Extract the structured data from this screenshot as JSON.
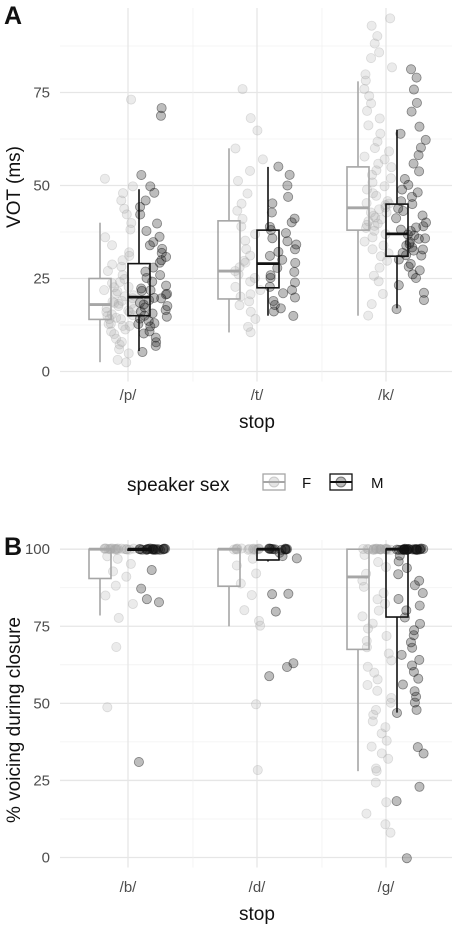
{
  "legend": {
    "title": "speaker sex",
    "entries": [
      {
        "label": "F",
        "color": "#a6a6a6"
      },
      {
        "label": "M",
        "color": "#111111"
      }
    ]
  },
  "chart_data": [
    {
      "type": "boxplot",
      "panel": "A",
      "xlabel": "stop",
      "ylabel": "VOT (ms)",
      "categories": [
        "/p/",
        "/t/",
        "/k/"
      ],
      "ylim": [
        0,
        97
      ],
      "yticks": [
        0,
        25,
        50,
        75
      ],
      "grid": true,
      "series": [
        {
          "name": "F",
          "color": "#a6a6a6",
          "boxes": [
            {
              "category": "/p/",
              "whisker_low": 2.5,
              "q1": 14,
              "median": 18,
              "q3": 25,
              "whisker_high": 40
            },
            {
              "category": "/t/",
              "whisker_low": 10.5,
              "q1": 19.5,
              "median": 27,
              "q3": 40.5,
              "whisker_high": 60
            },
            {
              "category": "/k/",
              "whisker_low": 15,
              "q1": 38,
              "median": 44,
              "q3": 55,
              "whisker_high": 78
            }
          ]
        },
        {
          "name": "M",
          "color": "#111111",
          "boxes": [
            {
              "category": "/p/",
              "whisker_low": 5.5,
              "q1": 15,
              "median": 20,
              "q3": 29,
              "whisker_high": 49
            },
            {
              "category": "/t/",
              "whisker_low": 15,
              "q1": 22.5,
              "median": 29,
              "q3": 38,
              "whisker_high": 55
            },
            {
              "category": "/k/",
              "whisker_low": 17,
              "q1": 31,
              "median": 37,
              "q3": 45,
              "whisker_high": 65
            }
          ]
        }
      ],
      "points": [
        {
          "category": "/p/",
          "series": "F",
          "values": [
            2.5,
            3,
            5,
            6,
            7,
            8,
            9,
            10,
            11,
            11.5,
            12,
            12.5,
            13,
            13,
            14,
            14,
            14.5,
            15,
            15,
            15.5,
            16,
            16,
            16.5,
            17,
            17,
            17.5,
            18,
            18,
            18.5,
            19,
            19,
            19.5,
            20,
            20.5,
            21,
            21.5,
            22,
            22.5,
            23,
            23.5,
            24,
            25,
            26,
            27,
            28,
            29,
            30,
            31,
            32,
            34,
            36,
            38,
            40,
            42,
            44,
            46,
            48,
            50,
            52,
            73
          ]
        },
        {
          "category": "/p/",
          "series": "M",
          "values": [
            5.5,
            7,
            8,
            9,
            10,
            11,
            12,
            12.5,
            13,
            13.5,
            14,
            14.5,
            15,
            15.5,
            16,
            16.5,
            17,
            17.5,
            18,
            18.5,
            19,
            19.5,
            20,
            20.5,
            21,
            21.5,
            22,
            22.5,
            23,
            24,
            25,
            26,
            27,
            28,
            29,
            30,
            31,
            32,
            33,
            34,
            35,
            36,
            38,
            40,
            42,
            44,
            46,
            48,
            50,
            53,
            69,
            71
          ]
        },
        {
          "category": "/t/",
          "series": "F",
          "values": [
            10.5,
            12,
            14,
            16,
            18,
            19,
            20,
            21,
            22,
            23,
            24,
            25,
            26,
            27,
            28,
            29,
            30,
            31,
            33,
            35,
            37,
            39,
            41,
            43,
            45,
            48,
            51,
            54,
            57,
            60,
            65,
            68,
            76
          ]
        },
        {
          "category": "/t/",
          "series": "M",
          "values": [
            15,
            16,
            17,
            18,
            19,
            20,
            21,
            22,
            23,
            24,
            25,
            26,
            27,
            28,
            29,
            30,
            31,
            32,
            33,
            34,
            35,
            36,
            37,
            38,
            39,
            40,
            41,
            43,
            45,
            47,
            50,
            53,
            55
          ]
        },
        {
          "category": "/k/",
          "series": "F",
          "values": [
            15,
            18,
            21,
            24,
            26,
            28,
            30,
            31,
            32,
            33,
            34,
            35,
            36,
            37,
            38,
            38.5,
            39,
            39.5,
            40,
            40.5,
            41,
            41.5,
            42,
            42.5,
            43,
            43.5,
            44,
            44.5,
            45,
            45.5,
            46,
            47,
            48,
            49,
            50,
            51,
            52,
            53,
            54,
            55,
            56,
            57,
            58,
            59,
            60,
            62,
            64,
            66,
            68,
            70,
            72,
            74,
            76,
            78,
            80,
            82,
            84,
            86,
            88,
            90,
            93,
            95
          ]
        },
        {
          "category": "/k/",
          "series": "M",
          "values": [
            17,
            19,
            21,
            23,
            25,
            26,
            27,
            28,
            29,
            30,
            31,
            31.5,
            32,
            32.5,
            33,
            33.5,
            34,
            34.5,
            35,
            35.5,
            36,
            36.5,
            37,
            37.5,
            38,
            38.5,
            39,
            40,
            41,
            42,
            43,
            44,
            45,
            46,
            47,
            48,
            49,
            50,
            52,
            54,
            56,
            58,
            60,
            62,
            64,
            66,
            70,
            72,
            76,
            79,
            81
          ]
        }
      ]
    },
    {
      "type": "boxplot",
      "panel": "B",
      "xlabel": "stop",
      "ylabel": "% voicing during closure",
      "categories": [
        "/b/",
        "/d/",
        "/g/"
      ],
      "ylim": [
        0,
        103
      ],
      "yticks": [
        0,
        25,
        50,
        75,
        100
      ],
      "grid": true,
      "series": [
        {
          "name": "F",
          "color": "#a6a6a6",
          "boxes": [
            {
              "category": "/b/",
              "whisker_low": 78.5,
              "q1": 90.5,
              "median": 100,
              "q3": 100,
              "whisker_high": 100
            },
            {
              "category": "/d/",
              "whisker_low": 75,
              "q1": 88,
              "median": 100,
              "q3": 100,
              "whisker_high": 100
            },
            {
              "category": "/g/",
              "whisker_low": 28,
              "q1": 67.5,
              "median": 91,
              "q3": 100,
              "whisker_high": 100
            }
          ]
        },
        {
          "name": "M",
          "color": "#111111",
          "boxes": [
            {
              "category": "/b/",
              "whisker_low": 100,
              "q1": 100,
              "median": 100,
              "q3": 100,
              "whisker_high": 100
            },
            {
              "category": "/d/",
              "whisker_low": 96,
              "q1": 96.5,
              "median": 100,
              "q3": 100,
              "whisker_high": 100
            },
            {
              "category": "/g/",
              "whisker_low": 47,
              "q1": 78,
              "median": 100,
              "q3": 100,
              "whisker_high": 100
            }
          ]
        }
      ],
      "points": [
        {
          "category": "/b/",
          "series": "F",
          "values": [
            100,
            100,
            100,
            100,
            100,
            100,
            100,
            100,
            100,
            100,
            100,
            100,
            100,
            100,
            100,
            100,
            100,
            100,
            98,
            97,
            95,
            93,
            91,
            88,
            85,
            82,
            78,
            68,
            49
          ]
        },
        {
          "category": "/b/",
          "series": "M",
          "values": [
            100,
            100,
            100,
            100,
            100,
            100,
            100,
            100,
            100,
            100,
            100,
            100,
            100,
            100,
            100,
            100,
            100,
            100,
            100,
            100,
            93.5,
            87.5,
            83.5,
            83,
            31
          ]
        },
        {
          "category": "/d/",
          "series": "F",
          "values": [
            100,
            100,
            100,
            100,
            100,
            100,
            100,
            100,
            100,
            100,
            100,
            100,
            100,
            100,
            97,
            95,
            92,
            89,
            85,
            80,
            77,
            75,
            50,
            28.5
          ]
        },
        {
          "category": "/d/",
          "series": "M",
          "values": [
            100,
            100,
            100,
            100,
            100,
            100,
            100,
            100,
            100,
            100,
            100,
            100,
            99,
            98,
            97,
            85.5,
            85.5,
            79.5,
            63,
            62,
            59
          ]
        },
        {
          "category": "/g/",
          "series": "F",
          "values": [
            100,
            100,
            100,
            100,
            100,
            100,
            100,
            100,
            100,
            100,
            100,
            100,
            100,
            100,
            100,
            100,
            100,
            100,
            100,
            100,
            98,
            96,
            94,
            92,
            90,
            88,
            86,
            84,
            82,
            80,
            78,
            76,
            74,
            72,
            70,
            68,
            66,
            64,
            62,
            60,
            58,
            56,
            54,
            52,
            50,
            48,
            46,
            44,
            42,
            40,
            38,
            36,
            34,
            32,
            29,
            28,
            24,
            18,
            14,
            11,
            8
          ]
        },
        {
          "category": "/g/",
          "series": "M",
          "values": [
            100,
            100,
            100,
            100,
            100,
            100,
            100,
            100,
            100,
            100,
            100,
            100,
            100,
            100,
            100,
            100,
            100,
            100,
            100,
            100,
            100,
            100,
            100,
            100,
            100,
            100,
            98,
            96,
            94,
            92,
            90,
            88,
            86,
            84,
            82,
            80,
            78,
            76,
            74,
            72,
            70,
            68,
            66,
            64,
            62,
            60,
            58,
            56,
            54,
            52,
            50,
            48,
            47,
            36,
            34,
            23,
            18,
            0
          ]
        }
      ]
    }
  ]
}
